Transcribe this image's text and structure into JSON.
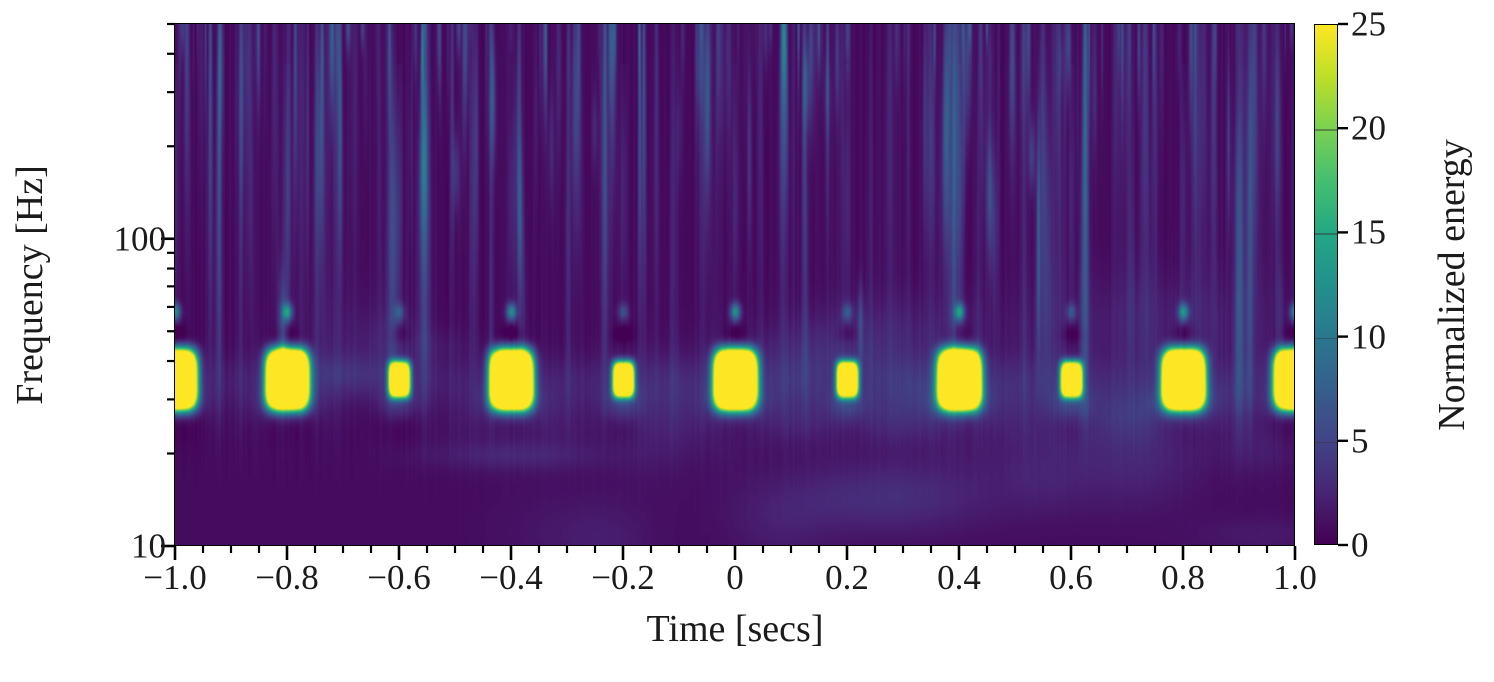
{
  "chart_data": {
    "type": "heatmap",
    "subtype": "spectrogram-qtransform",
    "title": "",
    "xlabel": "Time [secs]",
    "ylabel": "Frequency [Hz]",
    "colorbar_label": "Normalized energy",
    "xlim": [
      -1.0,
      1.0
    ],
    "ylim": [
      10,
      500
    ],
    "yscale": "log",
    "clim": [
      0,
      25
    ],
    "grid": false,
    "xticks": {
      "values": [
        -1.0,
        -0.8,
        -0.6,
        -0.4,
        -0.2,
        0,
        0.2,
        0.4,
        0.6,
        0.8,
        1.0
      ],
      "labels": [
        "−1.0",
        "−0.8",
        "−0.6",
        "−0.4",
        "−0.2",
        "0",
        "0.2",
        "0.4",
        "0.6",
        "0.8",
        "1.0"
      ],
      "minor_step": 0.05
    },
    "yticks": {
      "major": [
        {
          "value": 100,
          "label": "100"
        },
        {
          "value": 10,
          "label": "10"
        }
      ],
      "minor": [
        20,
        30,
        40,
        50,
        60,
        70,
        80,
        90,
        200,
        300,
        400,
        500
      ]
    },
    "colorbar": {
      "ticks": [
        {
          "value": 0,
          "label": "0"
        },
        {
          "value": 5,
          "label": "5"
        },
        {
          "value": 10,
          "label": "10"
        },
        {
          "value": 15,
          "label": "15"
        },
        {
          "value": 20,
          "label": "20"
        },
        {
          "value": 25,
          "label": "25"
        }
      ],
      "inner_lines_at": [
        5,
        10,
        15,
        20
      ]
    },
    "colormap": {
      "name": "viridis",
      "stops": [
        [
          0.0,
          "#440154"
        ],
        [
          0.1,
          "#482475"
        ],
        [
          0.2,
          "#414487"
        ],
        [
          0.3,
          "#355f8d"
        ],
        [
          0.4,
          "#2a788e"
        ],
        [
          0.5,
          "#21918c"
        ],
        [
          0.6,
          "#22a884"
        ],
        [
          0.7,
          "#44bf70"
        ],
        [
          0.8,
          "#7ad151"
        ],
        [
          0.9,
          "#bddf26"
        ],
        [
          1.0,
          "#fde725"
        ]
      ]
    },
    "features": {
      "description": "Periodic bright bursts at ~35 Hz every 0.2 s, alternating large/small, with faint harmonic dots near 58 Hz and noisy vertical wisps at higher frequencies",
      "pulse_row_frequency_hz": 35,
      "harmonic_dot_frequency_hz": 58,
      "pulse_period_s": 0.2,
      "max_energy": 25,
      "pulses": [
        {
          "time": -1.0,
          "size": "big"
        },
        {
          "time": -0.8,
          "size": "big"
        },
        {
          "time": -0.6,
          "size": "small"
        },
        {
          "time": -0.4,
          "size": "big"
        },
        {
          "time": -0.2,
          "size": "small"
        },
        {
          "time": 0.0,
          "size": "big"
        },
        {
          "time": 0.2,
          "size": "small"
        },
        {
          "time": 0.4,
          "size": "big"
        },
        {
          "time": 0.6,
          "size": "small"
        },
        {
          "time": 0.8,
          "size": "big"
        },
        {
          "time": 1.0,
          "size": "big"
        }
      ],
      "noise": {
        "seed": 20519,
        "streaks": 170,
        "top_streaks": 80,
        "bottom_blobs": 32
      }
    }
  }
}
